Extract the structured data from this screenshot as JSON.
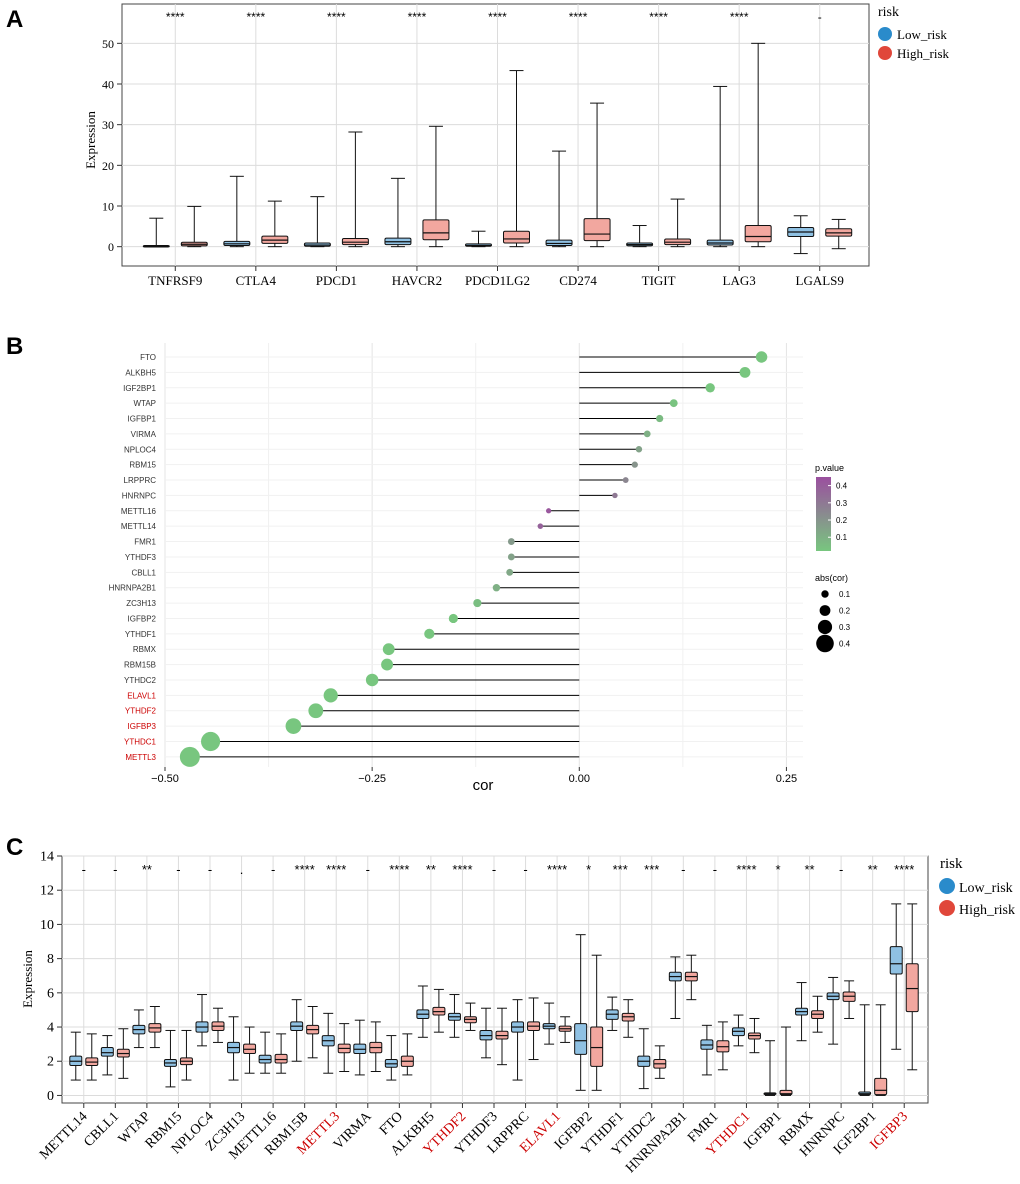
{
  "colors": {
    "low": "#2a8bcb",
    "low_fill": "#8fc1e3",
    "high": "#e0473a",
    "high_fill": "#f2a79f",
    "highlight": "#cc0000",
    "grad_high": "#9b4f9f",
    "grad_low": "#78c67f",
    "dot": "#75c27c",
    "stem": "#000000"
  },
  "panels": [
    {
      "id": "A",
      "label": "A"
    },
    {
      "id": "B",
      "label": "B"
    },
    {
      "id": "C",
      "label": "C"
    }
  ],
  "chart_data": [
    {
      "panel": "A",
      "type": "box",
      "ylabel": "Expression",
      "ylim": [
        -5,
        55
      ],
      "yticks": [
        0,
        10,
        20,
        30,
        40,
        50
      ],
      "legend": {
        "title": "risk",
        "entries": [
          "Low_risk",
          "High_risk"
        ],
        "placement": "right"
      },
      "categories": [
        "TNFRSF9",
        "CTLA4",
        "PDCD1",
        "HAVCR2",
        "PDCD1LG2",
        "CD274",
        "TIGIT",
        "LAG3",
        "LGALS9"
      ],
      "significance": [
        "****",
        "****",
        "****",
        "****",
        "****",
        "****",
        "****",
        "****",
        "-"
      ],
      "series": [
        {
          "name": "Low_risk",
          "boxes": [
            [
              0,
              0,
              0.1,
              0.3,
              7
            ],
            [
              0,
              0.3,
              0.7,
              1.3,
              17.3
            ],
            [
              0,
              0.1,
              0.4,
              0.9,
              12.3
            ],
            [
              0,
              0.5,
              1.2,
              2.1,
              16.8
            ],
            [
              0,
              0.1,
              0.3,
              0.7,
              3.8
            ],
            [
              0,
              0.3,
              0.8,
              1.6,
              23.5
            ],
            [
              0,
              0.2,
              0.5,
              0.9,
              5.2
            ],
            [
              0,
              0.4,
              0.9,
              1.6,
              39.4
            ],
            [
              -1.7,
              2.5,
              3.6,
              4.7,
              7.6
            ]
          ]
        },
        {
          "name": "High_risk",
          "boxes": [
            [
              0,
              0.2,
              0.6,
              1.1,
              9.9
            ],
            [
              0,
              0.8,
              1.6,
              2.6,
              11.2
            ],
            [
              0,
              0.5,
              1.1,
              2,
              28.2
            ],
            [
              0,
              1.7,
              3.4,
              6.6,
              29.6
            ],
            [
              0,
              0.9,
              1.9,
              3.8,
              43.3
            ],
            [
              0,
              1.5,
              3.1,
              6.9,
              35.3
            ],
            [
              0,
              0.5,
              1.1,
              1.9,
              11.7
            ],
            [
              0,
              1.2,
              2.5,
              5.2,
              50
            ],
            [
              -0.5,
              2.6,
              3.4,
              4.4,
              6.7
            ]
          ]
        }
      ]
    },
    {
      "panel": "B",
      "type": "lollipop",
      "xlabel": "cor",
      "xlim": [
        -0.5,
        0.27
      ],
      "xticks": [
        -0.5,
        -0.25,
        0.0,
        0.25
      ],
      "xtick_labels": [
        "−0.50",
        "−0.25",
        "0.00",
        "0.25"
      ],
      "legend_pvalue": {
        "title": "p.value",
        "ticks": [
          "0.4",
          "0.3",
          "0.2",
          "0.1"
        ],
        "values": [
          0.4,
          0.3,
          0.2,
          0.1
        ],
        "range": [
          0.02,
          0.45
        ]
      },
      "legend_size": {
        "title": "abs(cor)",
        "entries": [
          "0.1",
          "0.2",
          "0.3",
          "0.4"
        ],
        "values": [
          0.1,
          0.2,
          0.3,
          0.4
        ]
      },
      "genes": [
        {
          "gene": "FTO",
          "cor": 0.22,
          "p": 0.001,
          "highlight": false
        },
        {
          "gene": "ALKBH5",
          "cor": 0.2,
          "p": 0.002,
          "highlight": false
        },
        {
          "gene": "IGF2BP1",
          "cor": 0.158,
          "p": 0.005,
          "highlight": false
        },
        {
          "gene": "WTAP",
          "cor": 0.114,
          "p": 0.03,
          "highlight": false
        },
        {
          "gene": "IGFBP1",
          "cor": 0.097,
          "p": 0.06,
          "highlight": false
        },
        {
          "gene": "VIRMA",
          "cor": 0.082,
          "p": 0.1,
          "highlight": false
        },
        {
          "gene": "NPLOC4",
          "cor": 0.072,
          "p": 0.15,
          "highlight": false
        },
        {
          "gene": "RBM15",
          "cor": 0.067,
          "p": 0.2,
          "highlight": false
        },
        {
          "gene": "LRPPRC",
          "cor": 0.056,
          "p": 0.25,
          "highlight": false
        },
        {
          "gene": "HNRNPC",
          "cor": 0.043,
          "p": 0.3,
          "highlight": false
        },
        {
          "gene": "METTL16",
          "cor": -0.037,
          "p": 0.42,
          "highlight": false
        },
        {
          "gene": "METTL14",
          "cor": -0.047,
          "p": 0.38,
          "highlight": false
        },
        {
          "gene": "FMR1",
          "cor": -0.082,
          "p": 0.18,
          "highlight": false
        },
        {
          "gene": "YTHDF3",
          "cor": -0.082,
          "p": 0.15,
          "highlight": false
        },
        {
          "gene": "CBLL1",
          "cor": -0.084,
          "p": 0.13,
          "highlight": false
        },
        {
          "gene": "HNRNPA2B1",
          "cor": -0.1,
          "p": 0.1,
          "highlight": false
        },
        {
          "gene": "ZC3H13",
          "cor": -0.123,
          "p": 0.05,
          "highlight": false
        },
        {
          "gene": "IGFBP2",
          "cor": -0.152,
          "p": 0.01,
          "highlight": false
        },
        {
          "gene": "YTHDF1",
          "cor": -0.181,
          "p": 0.003,
          "highlight": false
        },
        {
          "gene": "RBMX",
          "cor": -0.23,
          "p": 0.001,
          "highlight": false
        },
        {
          "gene": "RBM15B",
          "cor": -0.232,
          "p": 0.001,
          "highlight": false
        },
        {
          "gene": "YTHDC2",
          "cor": -0.25,
          "p": 0.001,
          "highlight": false
        },
        {
          "gene": "ELAVL1",
          "cor": -0.3,
          "p": 0.001,
          "highlight": true
        },
        {
          "gene": "YTHDF2",
          "cor": -0.318,
          "p": 0.001,
          "highlight": true
        },
        {
          "gene": "IGFBP3",
          "cor": -0.345,
          "p": 0.001,
          "highlight": true
        },
        {
          "gene": "YTHDC1",
          "cor": -0.445,
          "p": 0.001,
          "highlight": true
        },
        {
          "gene": "METTL3",
          "cor": -0.47,
          "p": 0.001,
          "highlight": true
        }
      ]
    },
    {
      "panel": "C",
      "type": "box",
      "ylabel": "Expression",
      "ylim": [
        -0.5,
        14
      ],
      "yticks": [
        0,
        2,
        4,
        6,
        8,
        10,
        12,
        14
      ],
      "legend": {
        "title": "risk",
        "entries": [
          "Low_risk",
          "High_risk"
        ],
        "placement": "right"
      },
      "categories": [
        "METTL14",
        "CBLL1",
        "WTAP",
        "RBM15",
        "NPLOC4",
        "ZC3H13",
        "METTL16",
        "RBM15B",
        "METTL3",
        "VIRMA",
        "FTO",
        "ALKBH5",
        "YTHDF2",
        "YTHDF3",
        "LRPPRC",
        "ELAVL1",
        "IGFBP2",
        "YTHDF1",
        "YTHDC2",
        "HNRNPA2B1",
        "FMR1",
        "YTHDC1",
        "IGFBP1",
        "RBMX",
        "HNRNPC",
        "IGF2BP1",
        "IGFBP3"
      ],
      "highlight": [
        "METTL3",
        "YTHDF2",
        "ELAVL1",
        "YTHDC1",
        "IGFBP3"
      ],
      "significance": [
        "-",
        "-",
        "**",
        "-",
        "-",
        ".",
        "-",
        "****",
        "****",
        "-",
        "****",
        "**",
        "****",
        "-",
        "-",
        "****",
        "*",
        "***",
        "***",
        "-",
        "-",
        "****",
        "*",
        "**",
        "-",
        "**",
        "****"
      ],
      "series": [
        {
          "name": "Low_risk",
          "boxes": [
            [
              0.9,
              1.75,
              2.0,
              2.3,
              3.7
            ],
            [
              1.2,
              2.3,
              2.5,
              2.8,
              3.5
            ],
            [
              2.8,
              3.6,
              3.85,
              4.1,
              5.0
            ],
            [
              0.5,
              1.7,
              1.9,
              2.1,
              3.8
            ],
            [
              2.9,
              3.7,
              4.0,
              4.3,
              5.9
            ],
            [
              0.9,
              2.5,
              2.8,
              3.1,
              4.6
            ],
            [
              1.3,
              1.9,
              2.1,
              2.35,
              3.7
            ],
            [
              2.0,
              3.8,
              4.05,
              4.3,
              5.6
            ],
            [
              1.3,
              2.9,
              3.2,
              3.5,
              4.8
            ],
            [
              1.2,
              2.45,
              2.7,
              3.0,
              4.4
            ],
            [
              0.9,
              1.65,
              1.85,
              2.1,
              3.5
            ],
            [
              3.4,
              4.5,
              4.75,
              5.0,
              6.4
            ],
            [
              3.4,
              4.4,
              4.6,
              4.8,
              5.9
            ],
            [
              2.2,
              3.25,
              3.5,
              3.8,
              5.1
            ],
            [
              0.9,
              3.7,
              4.0,
              4.3,
              5.6
            ],
            [
              3.0,
              3.9,
              4.05,
              4.2,
              5.4
            ],
            [
              0.3,
              2.4,
              3.2,
              4.2,
              9.4
            ],
            [
              3.8,
              4.45,
              4.75,
              5.0,
              5.75
            ],
            [
              0.4,
              1.7,
              2.0,
              2.3,
              3.9
            ],
            [
              4.5,
              6.7,
              6.95,
              7.2,
              8.1
            ],
            [
              1.2,
              2.7,
              2.95,
              3.25,
              4.1
            ],
            [
              2.9,
              3.5,
              3.75,
              3.95,
              4.7
            ],
            [
              0,
              0.05,
              0.1,
              0.15,
              3.2
            ],
            [
              3.2,
              4.7,
              4.9,
              5.1,
              6.6
            ],
            [
              3.0,
              5.6,
              5.8,
              6.0,
              6.9
            ],
            [
              0,
              0.05,
              0.1,
              0.2,
              5.3
            ],
            [
              2.7,
              7.1,
              7.7,
              8.7,
              11.2
            ]
          ]
        },
        {
          "name": "High_risk",
          "boxes": [
            [
              0.9,
              1.75,
              1.95,
              2.2,
              3.6
            ],
            [
              1.0,
              2.25,
              2.45,
              2.7,
              3.9
            ],
            [
              2.8,
              3.7,
              3.95,
              4.2,
              5.2
            ],
            [
              0.9,
              1.8,
              2.0,
              2.2,
              3.8
            ],
            [
              3.1,
              3.8,
              4.05,
              4.3,
              5.1
            ],
            [
              1.3,
              2.45,
              2.7,
              3.0,
              4.0
            ],
            [
              1.3,
              1.9,
              2.1,
              2.4,
              3.6
            ],
            [
              2.2,
              3.6,
              3.85,
              4.1,
              5.2
            ],
            [
              1.4,
              2.5,
              2.75,
              3.0,
              4.2
            ],
            [
              1.4,
              2.5,
              2.8,
              3.1,
              4.3
            ],
            [
              1.2,
              1.7,
              2.0,
              2.3,
              3.6
            ],
            [
              3.7,
              4.7,
              4.9,
              5.15,
              6.2
            ],
            [
              3.8,
              4.25,
              4.45,
              4.6,
              5.4
            ],
            [
              1.8,
              3.3,
              3.5,
              3.75,
              5.1
            ],
            [
              2.1,
              3.8,
              4.05,
              4.3,
              5.7
            ],
            [
              3.1,
              3.75,
              3.9,
              4.05,
              4.6
            ],
            [
              0.3,
              1.7,
              2.8,
              4.0,
              8.2
            ],
            [
              3.4,
              4.35,
              4.6,
              4.8,
              5.6
            ],
            [
              1.0,
              1.6,
              1.85,
              2.1,
              2.9
            ],
            [
              5.6,
              6.7,
              6.95,
              7.2,
              8.2
            ],
            [
              1.5,
              2.55,
              2.85,
              3.2,
              4.3
            ],
            [
              2.5,
              3.3,
              3.5,
              3.65,
              4.5
            ],
            [
              0,
              0.05,
              0.1,
              0.3,
              4.0
            ],
            [
              3.7,
              4.5,
              4.75,
              4.95,
              5.8
            ],
            [
              4.5,
              5.5,
              5.8,
              6.05,
              6.7
            ],
            [
              0,
              0.05,
              0.3,
              1.0,
              5.3
            ],
            [
              1.5,
              4.9,
              6.25,
              7.7,
              11.2
            ]
          ]
        }
      ]
    }
  ]
}
